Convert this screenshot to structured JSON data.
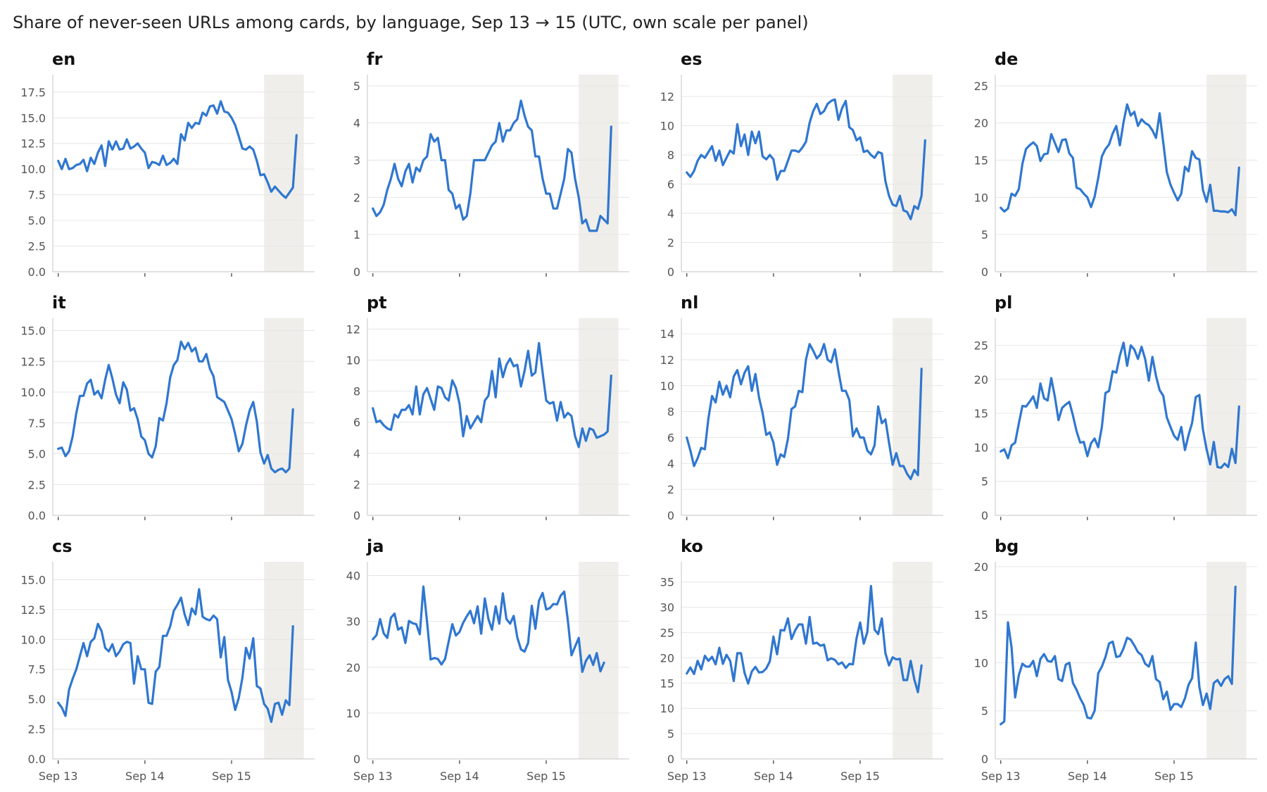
{
  "chart_data": {
    "type": "line",
    "title": "Share of never-seen URLs among cards, by language, Sep 13 → 15 (UTC, own scale per panel)",
    "x_tick_labels": [
      "Sep 13",
      "Sep 14",
      "Sep 15"
    ],
    "x_range_hours": [
      -1.5,
      71
    ],
    "shaded_region_hours": [
      57,
      68
    ],
    "grid": "horizontal",
    "series_color": "#2f77d0",
    "shade_color": "#efeeea",
    "panels": [
      {
        "name": "en",
        "ylim": [
          0,
          19.2
        ],
        "yticks": [
          "0.0",
          "2.5",
          "5.0",
          "7.5",
          "10.0",
          "12.5",
          "15.0",
          "17.5"
        ],
        "ytick_values": [
          0,
          2.5,
          5,
          7.5,
          10,
          12.5,
          15,
          17.5
        ],
        "values": [
          10.8,
          10.0,
          11.0,
          10.0,
          10.1,
          10.4,
          10.5,
          10.9,
          9.8,
          11.1,
          10.5,
          11.6,
          12.3,
          10.3,
          12.7,
          11.9,
          12.7,
          11.9,
          12.0,
          12.9,
          12.0,
          12.2,
          12.5,
          12.0,
          11.6,
          10.1,
          10.7,
          10.6,
          10.4,
          11.3,
          10.4,
          10.6,
          11.0,
          10.5,
          13.4,
          12.8,
          14.5,
          14.0,
          14.5,
          14.4,
          15.5,
          15.2,
          16.1,
          16.2,
          15.4,
          16.6,
          15.6,
          15.5,
          15.0,
          14.3,
          13.2,
          12.0,
          11.9,
          12.2,
          11.9,
          10.8,
          9.4,
          9.5,
          8.7,
          7.8,
          8.3,
          7.9,
          7.5,
          7.2,
          7.7,
          8.2,
          13.3
        ]
      },
      {
        "name": "fr",
        "ylim": [
          0,
          5.3
        ],
        "yticks": [
          "0",
          "1",
          "2",
          "3",
          "4",
          "5"
        ],
        "ytick_values": [
          0,
          1,
          2,
          3,
          4,
          5
        ],
        "values": [
          1.7,
          1.5,
          1.6,
          1.8,
          2.2,
          2.5,
          2.9,
          2.5,
          2.3,
          2.7,
          2.9,
          2.4,
          2.8,
          2.7,
          3.0,
          3.1,
          3.7,
          3.5,
          3.6,
          3.0,
          3.0,
          2.2,
          2.1,
          1.7,
          1.8,
          1.4,
          1.5,
          2.1,
          3.0,
          3.0,
          3.0,
          3.0,
          3.2,
          3.4,
          3.5,
          4.0,
          3.5,
          3.8,
          3.8,
          4.0,
          4.1,
          4.6,
          4.2,
          3.9,
          3.8,
          3.1,
          3.1,
          2.5,
          2.1,
          2.1,
          1.7,
          1.7,
          2.1,
          2.5,
          3.3,
          3.2,
          2.5,
          2.0,
          1.3,
          1.4,
          1.1,
          1.1,
          1.1,
          1.5,
          1.4,
          1.3,
          3.9
        ]
      },
      {
        "name": "es",
        "ylim": [
          0,
          13.5
        ],
        "yticks": [
          "0",
          "2",
          "4",
          "6",
          "8",
          "10",
          "12"
        ],
        "ytick_values": [
          0,
          2,
          4,
          6,
          8,
          10,
          12
        ],
        "values": [
          6.8,
          6.5,
          6.9,
          7.6,
          8.0,
          7.8,
          8.2,
          8.6,
          7.6,
          8.3,
          7.3,
          7.8,
          8.3,
          8.1,
          10.1,
          8.6,
          9.4,
          8.0,
          9.6,
          8.8,
          9.6,
          7.9,
          7.7,
          8.0,
          7.7,
          6.3,
          6.9,
          6.9,
          7.6,
          8.3,
          8.3,
          8.2,
          8.5,
          8.9,
          10.2,
          11.0,
          11.5,
          10.8,
          11.0,
          11.5,
          11.7,
          11.8,
          10.4,
          11.2,
          11.7,
          9.9,
          9.7,
          9.0,
          9.2,
          8.2,
          8.3,
          8.0,
          7.8,
          8.2,
          8.1,
          6.2,
          5.2,
          4.6,
          4.5,
          5.2,
          4.2,
          4.1,
          3.6,
          4.5,
          4.3,
          5.2,
          9.0
        ]
      },
      {
        "name": "de",
        "ylim": [
          0,
          26.5
        ],
        "yticks": [
          "0",
          "5",
          "10",
          "15",
          "20",
          "25"
        ],
        "ytick_values": [
          0,
          5,
          10,
          15,
          20,
          25
        ],
        "values": [
          8.6,
          8.1,
          8.5,
          10.5,
          10.2,
          11.1,
          14.5,
          16.5,
          17.0,
          17.4,
          16.9,
          14.9,
          15.8,
          15.9,
          18.5,
          17.3,
          16.1,
          17.7,
          17.8,
          15.9,
          15.3,
          11.3,
          11.1,
          10.5,
          10.0,
          8.7,
          10.1,
          12.6,
          15.5,
          16.5,
          17.1,
          18.6,
          19.6,
          17.0,
          20.1,
          22.5,
          21.0,
          21.5,
          19.6,
          20.5,
          20.0,
          19.7,
          19.0,
          18.0,
          21.3,
          17.4,
          13.4,
          11.7,
          10.6,
          9.6,
          10.5,
          14.1,
          13.5,
          16.2,
          15.3,
          15.1,
          11.0,
          9.4,
          11.7,
          8.2,
          8.2,
          8.1,
          8.1,
          8.0,
          8.4,
          7.6,
          14.0
        ]
      },
      {
        "name": "it",
        "ylim": [
          0,
          16.0
        ],
        "yticks": [
          "0.0",
          "2.5",
          "5.0",
          "7.5",
          "10.0",
          "12.5",
          "15.0"
        ],
        "ytick_values": [
          0,
          2.5,
          5,
          7.5,
          10,
          12.5,
          15
        ],
        "values": [
          5.4,
          5.5,
          4.8,
          5.2,
          6.4,
          8.3,
          9.7,
          9.7,
          10.7,
          11.0,
          9.8,
          10.1,
          9.5,
          11.0,
          12.2,
          11.1,
          9.8,
          9.1,
          10.8,
          10.2,
          8.5,
          8.7,
          7.8,
          6.4,
          6.1,
          5.0,
          4.7,
          5.6,
          7.9,
          7.7,
          9.1,
          11.2,
          12.2,
          12.6,
          14.1,
          13.5,
          14.0,
          13.3,
          13.6,
          12.5,
          12.5,
          13.1,
          11.9,
          11.3,
          9.6,
          9.4,
          9.2,
          8.5,
          7.8,
          6.6,
          5.2,
          5.8,
          7.3,
          8.5,
          9.2,
          7.6,
          5.1,
          4.2,
          4.9,
          3.8,
          3.5,
          3.7,
          3.8,
          3.5,
          3.8,
          8.6
        ]
      },
      {
        "name": "pt",
        "ylim": [
          0,
          12.7
        ],
        "yticks": [
          "0",
          "2",
          "4",
          "6",
          "8",
          "10",
          "12"
        ],
        "ytick_values": [
          0,
          2,
          4,
          6,
          8,
          10,
          12
        ],
        "values": [
          6.9,
          6.0,
          6.1,
          5.8,
          5.6,
          5.5,
          6.5,
          6.3,
          6.8,
          6.8,
          7.1,
          6.5,
          8.3,
          6.5,
          7.8,
          8.2,
          7.5,
          6.8,
          8.3,
          8.2,
          7.6,
          7.4,
          8.7,
          8.2,
          7.2,
          5.1,
          6.4,
          5.6,
          6.0,
          6.4,
          6.0,
          7.4,
          7.7,
          9.3,
          7.6,
          10.1,
          8.9,
          9.7,
          10.1,
          9.6,
          9.7,
          8.3,
          9.3,
          10.6,
          9.0,
          9.2,
          11.1,
          9.2,
          7.4,
          7.2,
          7.3,
          6.1,
          7.3,
          6.3,
          6.6,
          6.4,
          5.1,
          4.4,
          5.6,
          4.8,
          5.6,
          5.5,
          5.0,
          5.1,
          5.2,
          5.4,
          9.0
        ]
      },
      {
        "name": "nl",
        "ylim": [
          0,
          15.2
        ],
        "yticks": [
          "0",
          "2",
          "4",
          "6",
          "8",
          "10",
          "12",
          "14"
        ],
        "ytick_values": [
          0,
          2,
          4,
          6,
          8,
          10,
          12,
          14
        ],
        "values": [
          6.0,
          5.0,
          3.8,
          4.4,
          5.2,
          5.1,
          7.5,
          9.2,
          8.7,
          10.3,
          9.3,
          10.0,
          9.1,
          10.7,
          11.2,
          10.1,
          11.0,
          11.5,
          9.6,
          10.9,
          9.1,
          7.9,
          6.2,
          6.4,
          5.6,
          3.9,
          4.7,
          4.5,
          5.9,
          8.2,
          8.4,
          9.6,
          9.5,
          12.0,
          13.2,
          12.7,
          12.1,
          12.4,
          13.2,
          12.0,
          11.8,
          12.8,
          11.1,
          9.6,
          9.6,
          8.9,
          6.1,
          6.7,
          6.0,
          6.0,
          5.0,
          4.7,
          5.4,
          8.4,
          7.1,
          7.4,
          5.6,
          3.9,
          4.8,
          3.8,
          3.8,
          3.2,
          2.8,
          3.5,
          3.1,
          11.3
        ]
      },
      {
        "name": "pl",
        "ylim": [
          0,
          29.0
        ],
        "yticks": [
          "0",
          "5",
          "10",
          "15",
          "20",
          "25"
        ],
        "ytick_values": [
          0,
          5,
          10,
          15,
          20,
          25
        ],
        "values": [
          9.4,
          9.7,
          8.4,
          10.3,
          10.7,
          13.5,
          16.1,
          16.0,
          16.7,
          17.5,
          15.8,
          19.4,
          17.2,
          16.9,
          20.2,
          17.4,
          14.0,
          15.8,
          16.3,
          16.7,
          14.7,
          12.4,
          10.7,
          10.8,
          8.7,
          10.6,
          11.3,
          10.0,
          13.0,
          18.0,
          18.3,
          21.2,
          21.0,
          23.5,
          25.4,
          22.0,
          25.0,
          24.4,
          23.0,
          24.8,
          23.0,
          19.8,
          23.3,
          20.5,
          18.4,
          17.6,
          14.4,
          13.0,
          11.7,
          11.1,
          13.0,
          9.6,
          11.8,
          13.6,
          17.4,
          17.7,
          12.6,
          9.7,
          7.5,
          10.8,
          7.1,
          7.0,
          7.6,
          7.1,
          9.8,
          7.7,
          16.0
        ]
      },
      {
        "name": "cs",
        "ylim": [
          0,
          16.5
        ],
        "yticks": [
          "0.0",
          "2.5",
          "5.0",
          "7.5",
          "10.0",
          "12.5",
          "15.0"
        ],
        "ytick_values": [
          0,
          2.5,
          5,
          7.5,
          10,
          12.5,
          15
        ],
        "values": [
          4.7,
          4.3,
          3.6,
          5.8,
          6.7,
          7.5,
          8.6,
          9.7,
          8.6,
          9.8,
          10.1,
          11.3,
          10.7,
          9.3,
          9.0,
          9.6,
          8.6,
          9.0,
          9.6,
          9.8,
          9.7,
          6.3,
          8.6,
          7.5,
          7.5,
          4.7,
          4.6,
          7.3,
          7.7,
          10.3,
          10.3,
          11.1,
          12.4,
          12.9,
          13.5,
          12.1,
          11.2,
          12.6,
          12.1,
          14.2,
          11.9,
          11.7,
          11.6,
          12.0,
          11.7,
          8.5,
          10.2,
          6.6,
          5.6,
          4.1,
          5.1,
          6.8,
          9.3,
          8.4,
          10.1,
          6.1,
          5.9,
          4.6,
          4.2,
          3.1,
          4.6,
          4.7,
          3.7,
          4.9,
          4.5,
          11.1
        ]
      },
      {
        "name": "ja",
        "ylim": [
          0,
          43.0
        ],
        "yticks": [
          "0",
          "10",
          "20",
          "30",
          "40"
        ],
        "ytick_values": [
          0,
          10,
          20,
          30,
          40
        ],
        "values": [
          26.1,
          27.0,
          30.5,
          27.4,
          26.4,
          30.8,
          31.7,
          28.2,
          28.7,
          25.3,
          30.1,
          29.6,
          29.4,
          27.2,
          37.6,
          29.9,
          21.7,
          22.0,
          21.8,
          20.6,
          21.8,
          25.6,
          29.4,
          26.9,
          27.7,
          29.7,
          31.1,
          32.3,
          29.6,
          33.3,
          27.3,
          35.0,
          30.5,
          28.2,
          33.3,
          29.5,
          36.1,
          30.5,
          29.5,
          31.2,
          26.5,
          23.9,
          23.4,
          25.3,
          33.4,
          28.4,
          34.5,
          36.2,
          32.6,
          32.9,
          33.8,
          33.7,
          35.6,
          36.5,
          30.1,
          22.6,
          24.5,
          26.4,
          19.0,
          21.4,
          22.6,
          20.5,
          23.1,
          19.1,
          21.0
        ]
      },
      {
        "name": "ko",
        "ylim": [
          0,
          39.0
        ],
        "yticks": [
          "0",
          "5",
          "10",
          "15",
          "20",
          "25",
          "30",
          "35"
        ],
        "ytick_values": [
          0,
          5,
          10,
          15,
          20,
          25,
          30,
          35
        ],
        "values": [
          16.9,
          18.1,
          16.8,
          19.4,
          17.7,
          20.4,
          19.4,
          20.2,
          18.7,
          22.0,
          18.8,
          20.6,
          19.4,
          15.4,
          20.9,
          20.9,
          17.0,
          14.9,
          17.3,
          18.2,
          17.1,
          17.2,
          17.9,
          19.3,
          24.2,
          20.7,
          25.5,
          25.4,
          27.8,
          23.7,
          25.4,
          26.6,
          26.6,
          22.8,
          28.1,
          22.8,
          23.0,
          22.4,
          22.6,
          19.5,
          19.9,
          19.6,
          18.7,
          19.1,
          18.0,
          18.8,
          18.7,
          23.9,
          27.0,
          22.8,
          25.1,
          34.2,
          25.6,
          24.7,
          27.8,
          20.9,
          18.5,
          20.1,
          19.7,
          19.8,
          15.6,
          15.6,
          19.4,
          15.7,
          13.2,
          18.5
        ]
      },
      {
        "name": "bg",
        "ylim": [
          0,
          20.5
        ],
        "yticks": [
          "0",
          "5",
          "10",
          "15",
          "20"
        ],
        "ytick_values": [
          0,
          5,
          10,
          15,
          20
        ],
        "values": [
          3.6,
          3.9,
          14.2,
          11.6,
          6.4,
          8.7,
          9.9,
          9.6,
          9.6,
          10.2,
          8.6,
          10.4,
          10.9,
          10.2,
          10.1,
          10.7,
          8.3,
          8.1,
          9.8,
          10.0,
          7.9,
          7.2,
          6.3,
          5.6,
          4.3,
          4.2,
          5.0,
          8.9,
          9.6,
          10.6,
          12.0,
          12.2,
          10.6,
          10.7,
          11.5,
          12.6,
          12.4,
          11.8,
          11.1,
          10.8,
          9.9,
          9.6,
          10.7,
          8.3,
          8.0,
          6.2,
          7.0,
          5.1,
          5.7,
          5.7,
          5.4,
          6.3,
          7.7,
          8.4,
          12.1,
          7.5,
          5.6,
          6.8,
          5.2,
          7.9,
          8.2,
          7.6,
          8.3,
          8.6,
          7.8,
          17.9
        ]
      }
    ]
  }
}
